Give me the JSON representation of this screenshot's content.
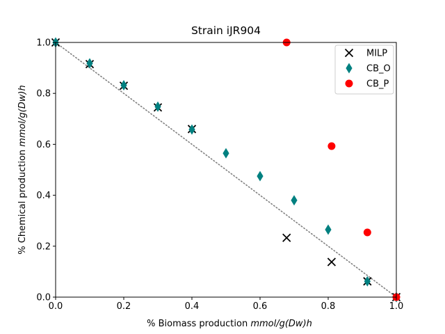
{
  "chart_data": {
    "type": "scatter",
    "title": "Strain iJR904",
    "xlabel_prefix": "% Biomass production ",
    "xlabel_math": "mmol/g(Dw)h",
    "ylabel_prefix": "% Chemical production ",
    "ylabel_math": "mmol/g(Dw)h",
    "xlim": [
      0,
      1.0
    ],
    "ylim": [
      0,
      1.0
    ],
    "xticks": [
      "0.0",
      "0.2",
      "0.4",
      "0.6",
      "0.8",
      "1.0"
    ],
    "yticks": [
      "0.0",
      "0.2",
      "0.4",
      "0.6",
      "0.8",
      "1.0"
    ],
    "grid": false,
    "legend_position": "top-right",
    "reference_line": {
      "x": [
        0,
        1.0
      ],
      "y": [
        1.0,
        0
      ],
      "style": "dotted",
      "color": "#808080"
    },
    "series": [
      {
        "name": "MILP",
        "marker": "x",
        "color": "#000000",
        "points": [
          [
            0.0,
            1.0
          ],
          [
            0.1,
            0.915
          ],
          [
            0.2,
            0.83
          ],
          [
            0.3,
            0.745
          ],
          [
            0.4,
            0.66
          ],
          [
            0.678,
            0.233
          ],
          [
            0.81,
            0.138
          ],
          [
            0.915,
            0.062
          ],
          [
            1.0,
            0.0
          ]
        ]
      },
      {
        "name": "CB_O",
        "marker": "diamond",
        "color": "#008080",
        "points": [
          [
            0.0,
            1.0
          ],
          [
            0.1,
            0.918
          ],
          [
            0.2,
            0.832
          ],
          [
            0.3,
            0.748
          ],
          [
            0.4,
            0.658
          ],
          [
            0.5,
            0.565
          ],
          [
            0.6,
            0.475
          ],
          [
            0.7,
            0.38
          ],
          [
            0.8,
            0.265
          ],
          [
            0.915,
            0.062
          ],
          [
            1.0,
            0.0
          ]
        ]
      },
      {
        "name": "CB_P",
        "marker": "circle",
        "color": "#ff0000",
        "points": [
          [
            0.678,
            1.0
          ],
          [
            0.81,
            0.593
          ],
          [
            0.915,
            0.254
          ],
          [
            1.0,
            0.0
          ]
        ]
      }
    ]
  }
}
